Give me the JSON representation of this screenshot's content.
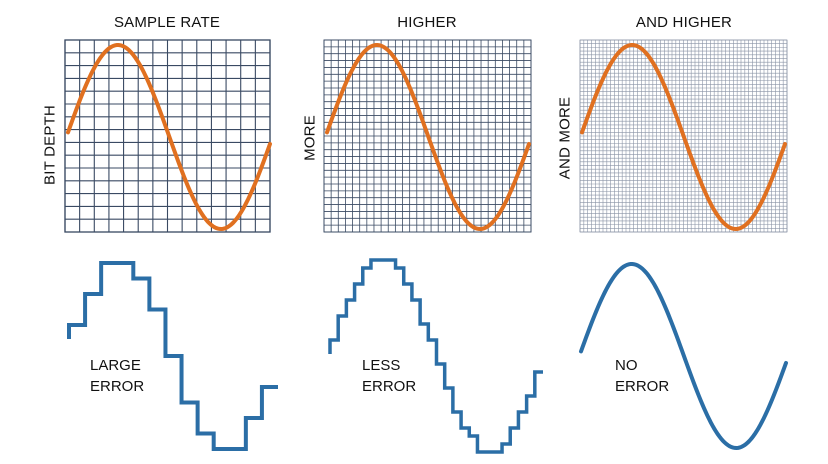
{
  "colors": {
    "sine": "#e07020",
    "stair": "#2b6ea6",
    "grid": "#3a4a63",
    "grid_dense": "#8a94a6"
  },
  "columns": [
    {
      "title": "SAMPLE RATE",
      "side_label": "BIT DEPTH",
      "error_line1": "LARGE",
      "error_line2": "ERROR"
    },
    {
      "title": "HIGHER",
      "side_label": "MORE",
      "error_line1": "LESS",
      "error_line2": "ERROR"
    },
    {
      "title": "AND HIGHER",
      "side_label": "AND MORE",
      "error_line1": "NO",
      "error_line2": "ERROR"
    }
  ]
}
